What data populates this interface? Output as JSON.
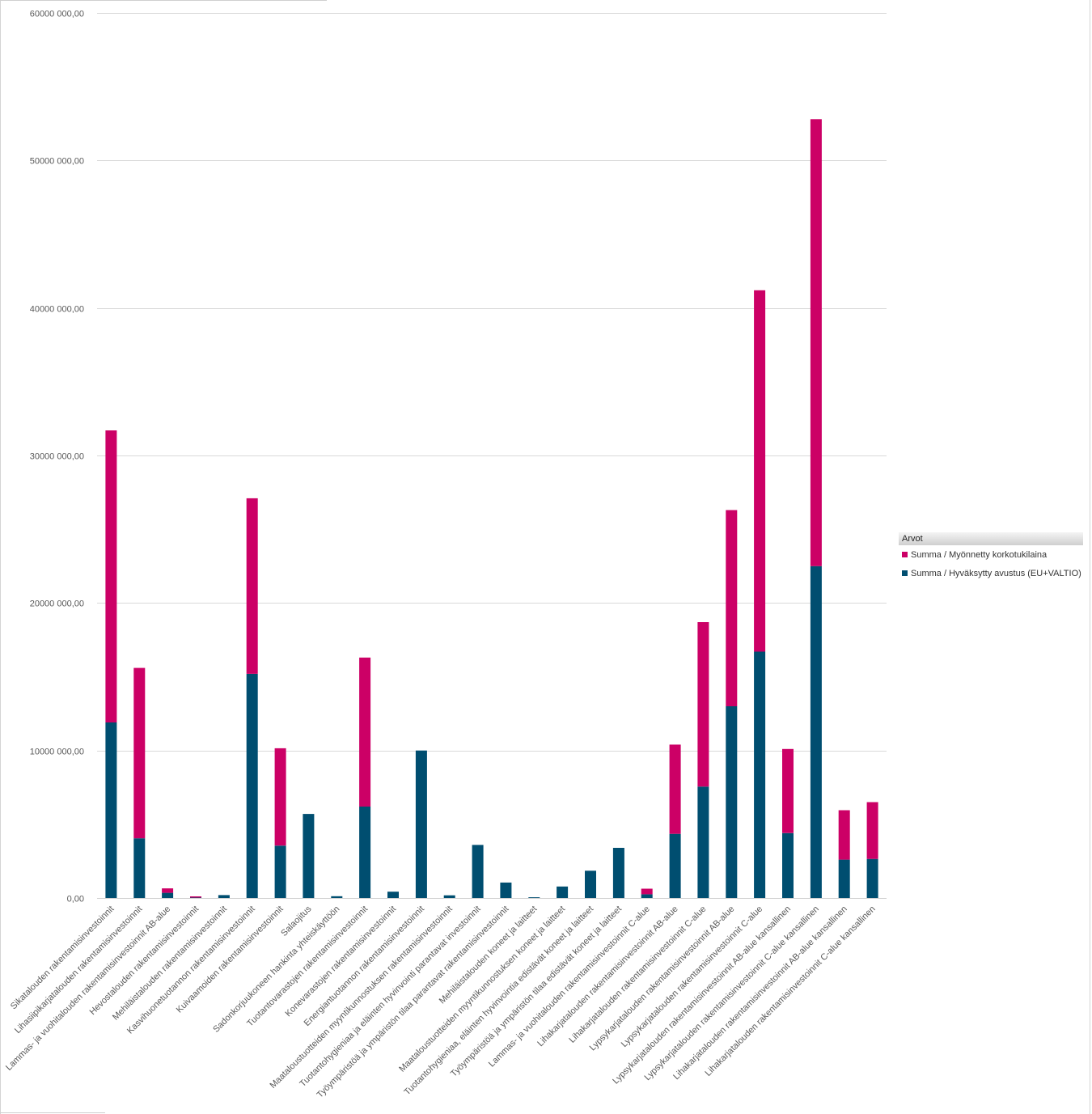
{
  "chart_data": {
    "type": "bar",
    "stacked": true,
    "y_tick_labels": [
      "0,00",
      "10000 000,00",
      "20000 000,00",
      "30000 000,00",
      "40000 000,00",
      "50000 000,00",
      "60000 000,00"
    ],
    "ylim": [
      0,
      60000000
    ],
    "y_ticks": [
      0,
      10000000,
      20000000,
      30000000,
      40000000,
      50000000,
      60000000
    ],
    "grid": true,
    "legend_position": "right",
    "legend_title": "Arvot",
    "categories": [
      "Sikatalouden rakentamisinvestoinnit",
      "Lihasiipikarjatalouden rakentamisinvestoinnit",
      "Lammas- ja vuohitalouden rakentamisinvestoinnit AB-alue",
      "Hevostalouden rakentamisinvestoinnit",
      "Mehiläistalouden rakentamisinvestoinnit",
      "Kasvihuonetuotannon rakentamisinvestoinnit",
      "Kuivaamoiden rakentamisinvestoinnit",
      "Salaojitus",
      "Sadonkorjuukoneen hankinta yhteiskäyttöön",
      "Tuotantovarastojen rakentamisinvestoinnit",
      "Konevarastojen rakentamisinvestoinnit",
      "Energiantuotannon rakentamisinvestoinnit",
      "Maataloustuotteiden myyntikunnostuksen rakentamisinvestoinnit",
      "Tuotantohygieniaa ja eläinten hyvinvointi parantavat investoinnit",
      "Työympäristöä ja ympäristön tilaa parantavat rakentamisinvestoinnit",
      "Mehiläistalouden koneet ja laitteet",
      "Maataloustuotteiden myyntikunnostuksen koneet ja laitteet",
      "Tuotantohygieniaa, eläinten hyvinvointia edistävät koneet ja laitteet",
      "Työympäristöä ja ympäristön tilaa edistävät koneet ja laitteet",
      "Lammas- ja vuohitalouden rakentamisinvestoinnit C-alue",
      "Lihakarjatalouden rakentamisinvestoinnit AB-alue",
      "Lihakarjatalouden rakentamisinvestoinnit C-alue",
      "Lypsykarjatalouden rakentamisinvestoinnit AB-alue",
      "Lypsykarjatalouden rakentamisinvestoinnit C-alue",
      "Lypsykarjatalouden rakentamisinvestoinnit AB-alue kansallinen",
      "Lypsykarjatalouden rakentamisinvestoinnit C-alue kansallinen",
      "Lihakarjatalouden rakentamisinvestoinnit AB-alue kansallinen",
      "Lihakarjatalouden rakentamisinvestoinnit C-alue kansallinen"
    ],
    "series": [
      {
        "name": "Summa / Hyväksytty avustus (EU+VALTIO)",
        "color": "#004e70",
        "values": [
          11900000,
          4050000,
          350000,
          30000,
          200000,
          15200000,
          3550000,
          5700000,
          120000,
          6200000,
          430000,
          10000000,
          180000,
          3600000,
          1050000,
          50000,
          780000,
          1850000,
          3400000,
          250000,
          4350000,
          7550000,
          13000000,
          16700000,
          4400000,
          22500000,
          2600000,
          2650000
        ]
      },
      {
        "name": "Summa / Myönnetty korkotukilaina",
        "color": "#cc0066",
        "values": [
          19800000,
          11550000,
          300000,
          80000,
          0,
          11900000,
          6600000,
          0,
          0,
          10100000,
          0,
          0,
          0,
          0,
          0,
          0,
          0,
          0,
          0,
          380000,
          6050000,
          11150000,
          13300000,
          24500000,
          5700000,
          30300000,
          3350000,
          3850000
        ]
      }
    ],
    "legend_order": [
      1,
      0
    ]
  }
}
